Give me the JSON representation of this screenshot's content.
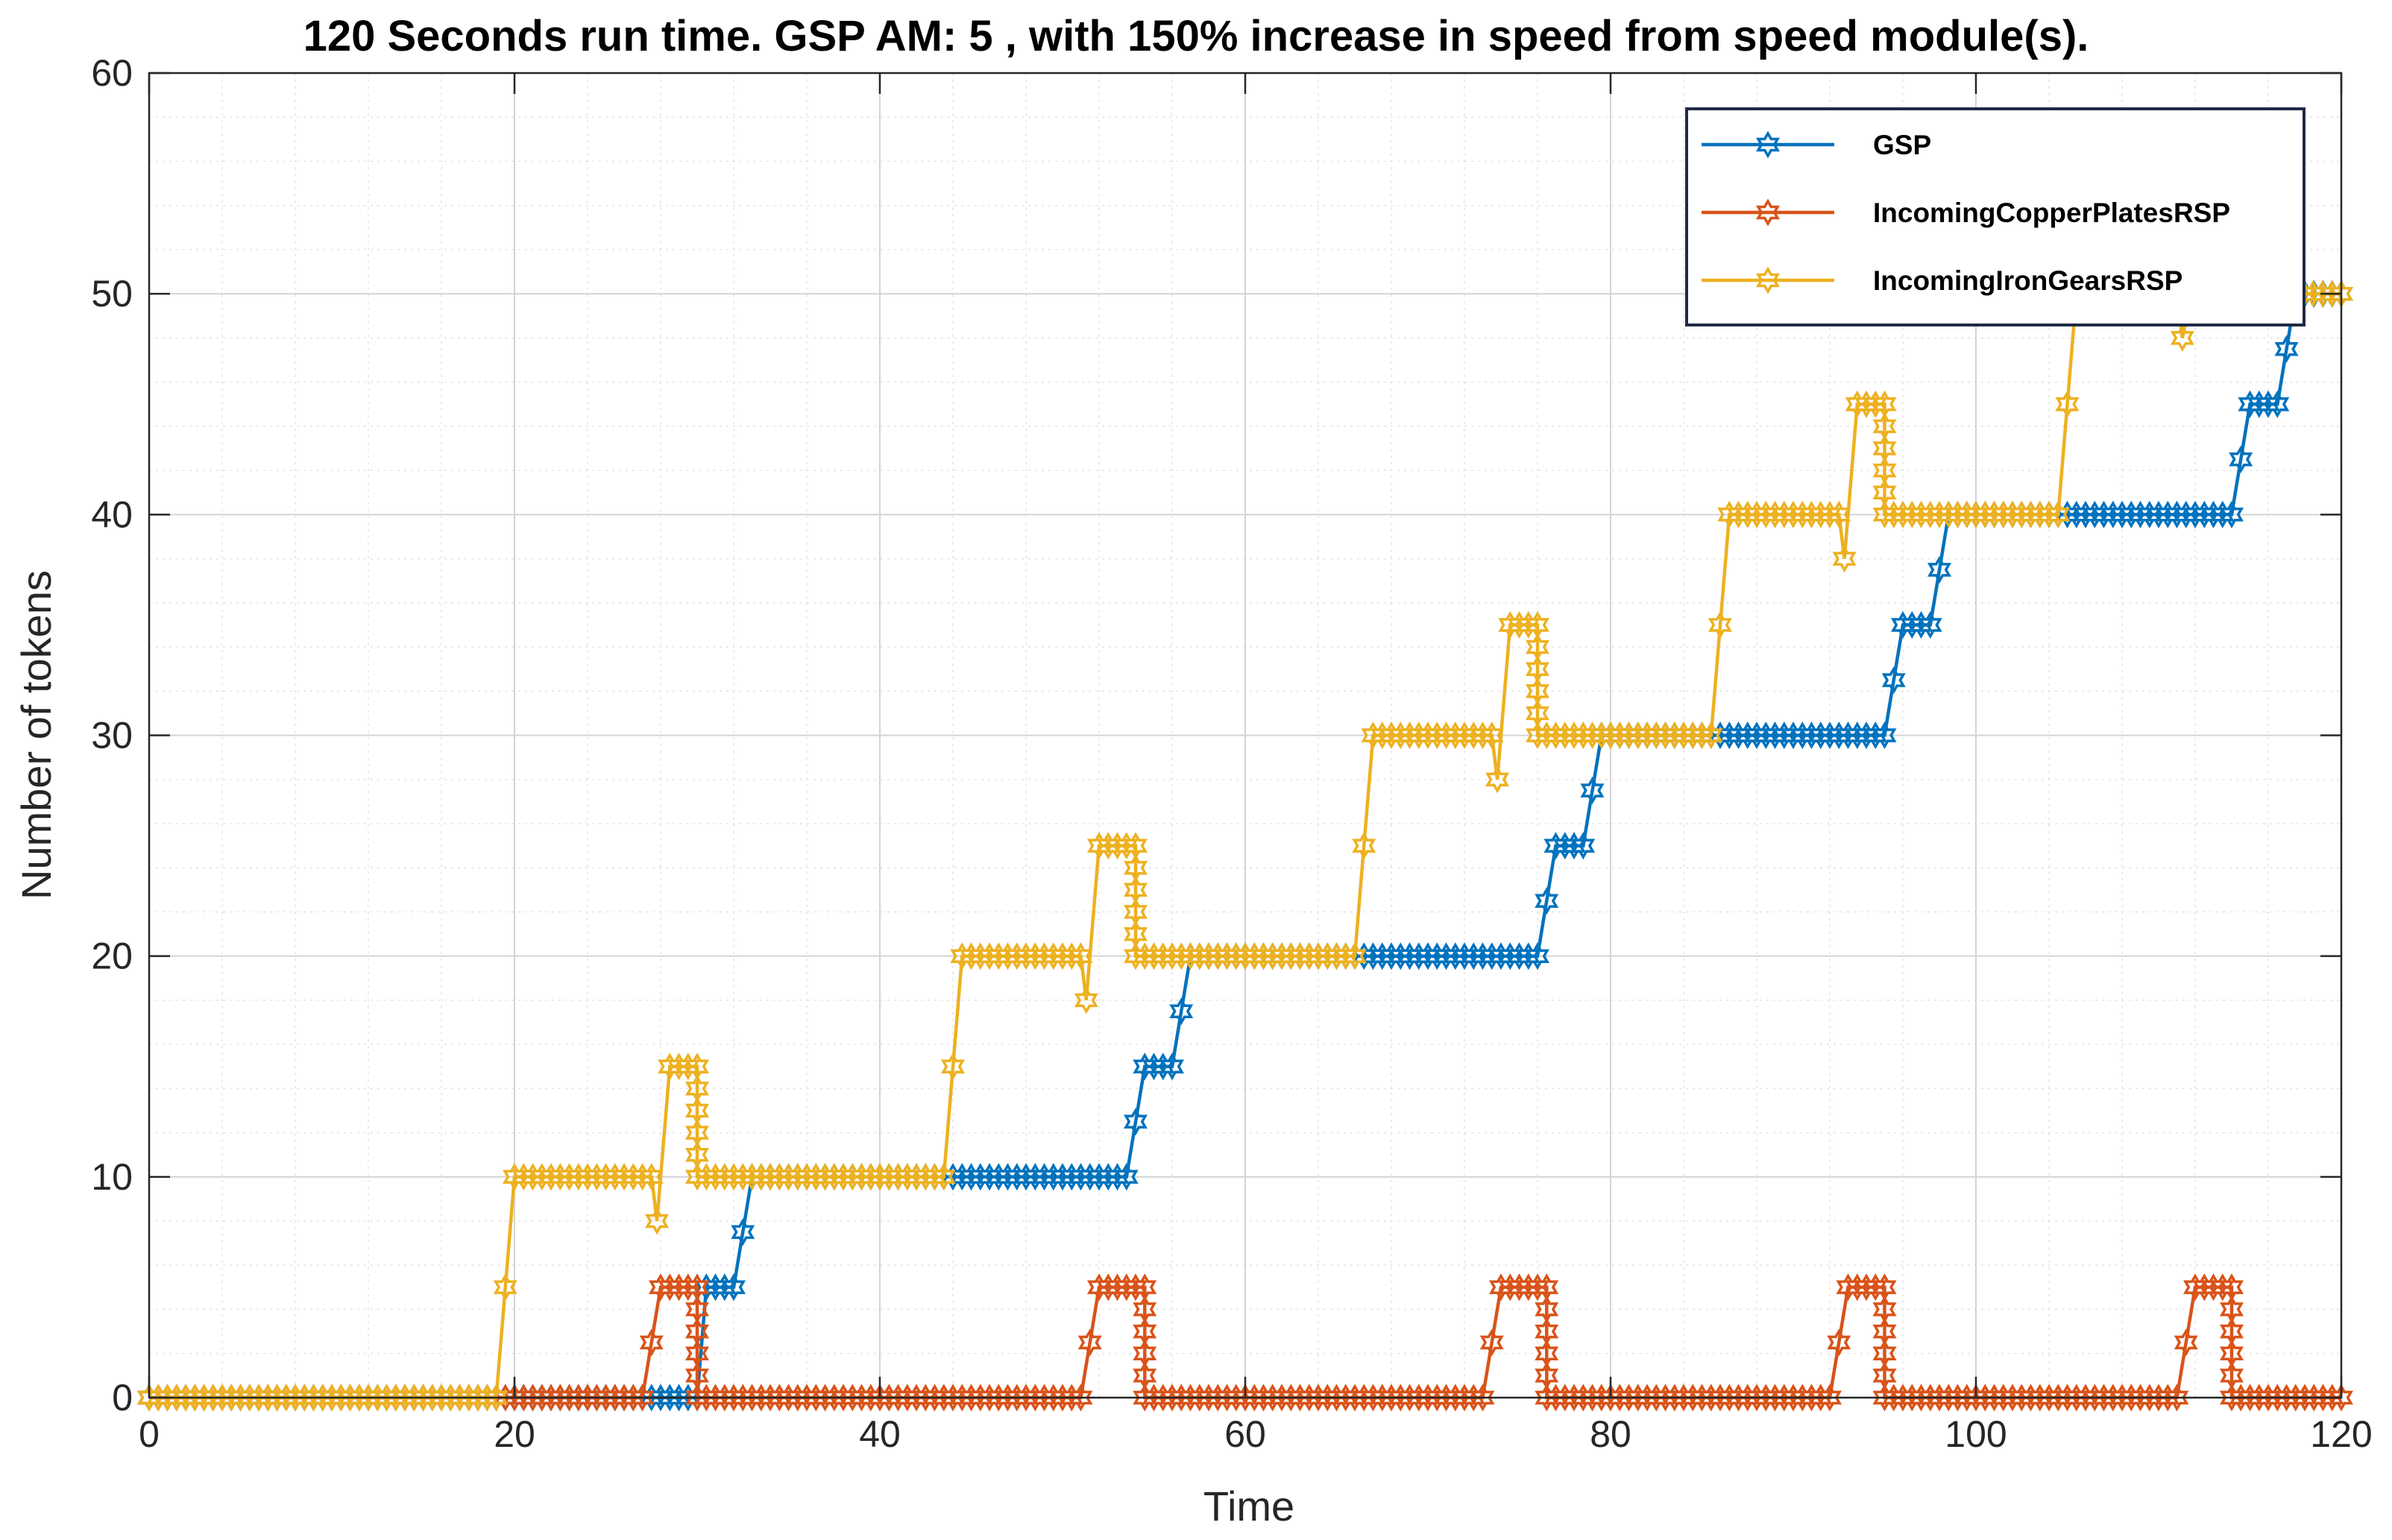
{
  "chart_data": {
    "type": "line",
    "title": "120 Seconds run time. GSP AM: 5 , with 150% increase in speed from speed module(s).",
    "xlabel": "Time",
    "ylabel": "Number of tokens",
    "xlim": [
      0,
      120
    ],
    "ylim": [
      0,
      60
    ],
    "xticks": [
      0,
      20,
      40,
      60,
      80,
      100,
      120
    ],
    "yticks": [
      0,
      10,
      20,
      30,
      40,
      50,
      60
    ],
    "xtick_labels": [
      "0",
      "20",
      "40",
      "60",
      "80",
      "100",
      "120"
    ],
    "ytick_labels": [
      "0",
      "10",
      "20",
      "30",
      "40",
      "50",
      "60"
    ],
    "grid": true,
    "minor_grid": true,
    "legend_position": "top-right",
    "marker": "hexagram",
    "series": [
      {
        "name": "GSP",
        "color": "#0072BD",
        "points": [
          [
            0,
            0
          ],
          [
            19.5,
            0
          ],
          [
            27,
            0
          ],
          [
            28.5,
            0
          ],
          [
            29.5,
            0
          ],
          [
            30,
            0
          ],
          [
            30.5,
            5
          ],
          [
            32,
            5
          ],
          [
            33,
            10
          ],
          [
            43.5,
            10
          ],
          [
            53.5,
            10
          ],
          [
            54.5,
            15
          ],
          [
            56,
            15
          ],
          [
            57,
            20
          ],
          [
            66.5,
            20
          ],
          [
            76,
            20
          ],
          [
            77,
            25
          ],
          [
            78.5,
            25
          ],
          [
            79.5,
            30
          ],
          [
            86,
            30
          ],
          [
            95,
            30
          ],
          [
            96,
            35
          ],
          [
            97.5,
            35
          ],
          [
            98.5,
            40
          ],
          [
            105,
            40
          ],
          [
            114,
            40
          ],
          [
            115,
            45
          ],
          [
            116.5,
            45
          ],
          [
            117.5,
            50
          ],
          [
            120,
            50
          ]
        ]
      },
      {
        "name": "IncomingCopperPlatesRSP",
        "color": "#D95319",
        "points": [
          [
            0,
            0
          ],
          [
            19.5,
            0
          ],
          [
            27,
            0
          ],
          [
            28,
            5
          ],
          [
            30,
            5
          ],
          [
            30,
            0
          ],
          [
            51,
            0
          ],
          [
            52,
            5
          ],
          [
            54.5,
            5
          ],
          [
            54.5,
            0
          ],
          [
            73,
            0
          ],
          [
            74,
            5
          ],
          [
            76.5,
            5
          ],
          [
            76.5,
            0
          ],
          [
            92,
            0
          ],
          [
            93,
            5
          ],
          [
            95,
            5
          ],
          [
            95,
            0
          ],
          [
            111,
            0
          ],
          [
            112,
            5
          ],
          [
            114,
            5
          ],
          [
            114,
            0
          ],
          [
            120,
            0
          ]
        ]
      },
      {
        "name": "IncomingIronGearsRSP",
        "color": "#EDB120",
        "points": [
          [
            0,
            0
          ],
          [
            19,
            0
          ],
          [
            20,
            10
          ],
          [
            27.5,
            10
          ],
          [
            27.8,
            8
          ],
          [
            28.5,
            15
          ],
          [
            30,
            15
          ],
          [
            30,
            10
          ],
          [
            43.5,
            10
          ],
          [
            44.5,
            20
          ],
          [
            51,
            20
          ],
          [
            51.3,
            18
          ],
          [
            52,
            25
          ],
          [
            54,
            25
          ],
          [
            54,
            20
          ],
          [
            66,
            20
          ],
          [
            67,
            30
          ],
          [
            73.5,
            30
          ],
          [
            73.8,
            28
          ],
          [
            74.5,
            35
          ],
          [
            76,
            35
          ],
          [
            76,
            30
          ],
          [
            85.5,
            30
          ],
          [
            86.5,
            40
          ],
          [
            92.5,
            40
          ],
          [
            92.8,
            38
          ],
          [
            93.5,
            45
          ],
          [
            95,
            45
          ],
          [
            95,
            40
          ],
          [
            104.5,
            40
          ],
          [
            105.5,
            50
          ],
          [
            111,
            50
          ],
          [
            111.3,
            48
          ],
          [
            111.8,
            50
          ],
          [
            120,
            50
          ]
        ]
      }
    ]
  }
}
